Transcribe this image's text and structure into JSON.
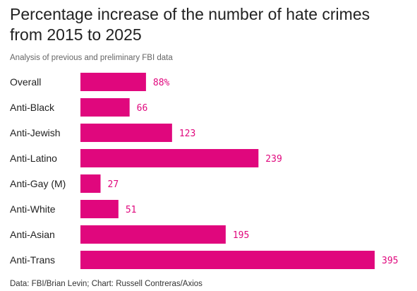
{
  "chart_data": {
    "type": "bar",
    "orientation": "horizontal",
    "title": "Percentage increase of the number of hate crimes from 2015 to 2025",
    "subtitle": "Analysis of previous and preliminary FBI data",
    "source": "Data: FBI/Brian Levin; Chart: Russell Contreras/Axios",
    "categories": [
      "Overall",
      "Anti-Black",
      "Anti-Jewish",
      "Anti-Latino",
      "Anti-Gay (M)",
      "Anti-White",
      "Anti-Asian",
      "Anti-Trans"
    ],
    "values": [
      88,
      66,
      123,
      239,
      27,
      51,
      195,
      395
    ],
    "value_labels": [
      "88%",
      "66",
      "123",
      "239",
      "27",
      "51",
      "195",
      "395"
    ],
    "xlim": [
      0,
      395
    ],
    "grid": false,
    "bar_color": "#e0077d",
    "label_color": "#e0077d"
  }
}
